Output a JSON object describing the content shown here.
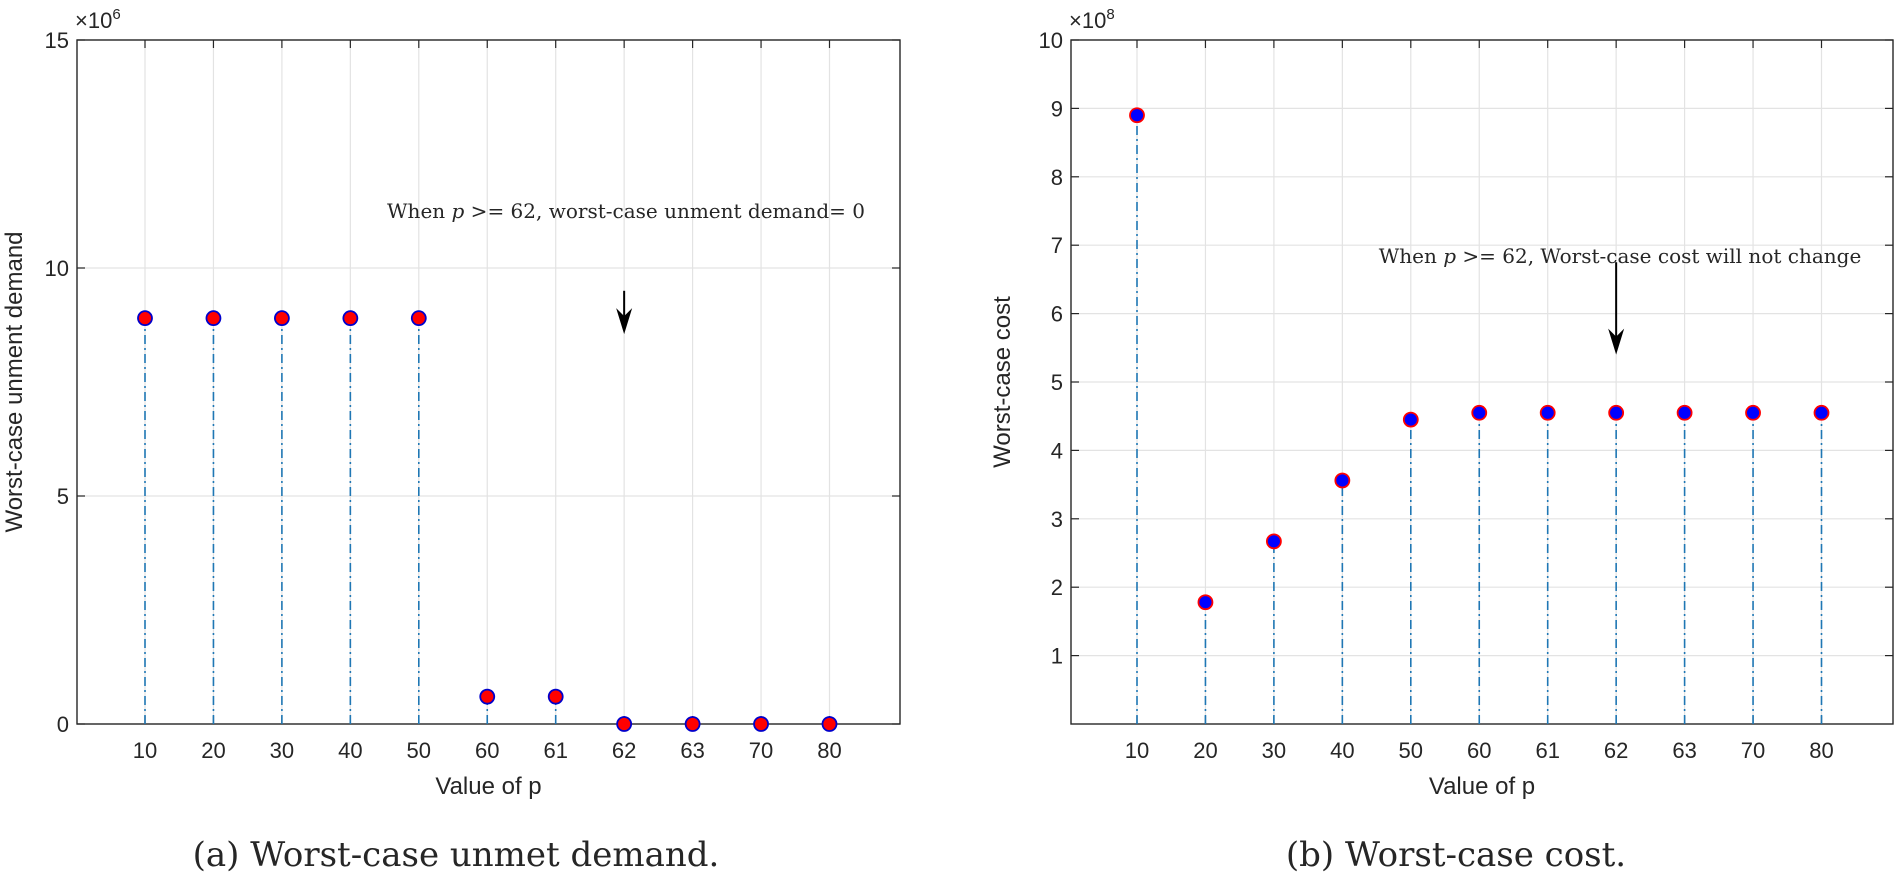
{
  "chart_data": [
    {
      "type": "stem",
      "panel": "a",
      "caption": "(a) Worst-case unmet demand.",
      "xlabel": "Value of p",
      "ylabel": "Worst-case unment demand",
      "categories": [
        "10",
        "20",
        "30",
        "40",
        "50",
        "60",
        "61",
        "62",
        "63",
        "70",
        "80"
      ],
      "values": [
        8.9,
        8.9,
        8.9,
        8.9,
        8.9,
        0.6,
        0.6,
        0,
        0,
        0,
        0
      ],
      "ylim": [
        0,
        15
      ],
      "yticks": [
        0,
        5,
        10,
        15
      ],
      "y_multiplier": "×10",
      "y_multiplier_exp": "6",
      "grid": true,
      "marker": {
        "face": "#ff0000",
        "edge": "#0000cc"
      },
      "stem_color": "#1f77b4",
      "annotation": {
        "pre": "When ",
        "var": "p",
        "post": " >= 62, worst-case unment demand= 0",
        "arrow_category": "62",
        "arrow_from": 9.5,
        "arrow_to": 8.55
      }
    },
    {
      "type": "stem",
      "panel": "b",
      "caption": "(b) Worst-case cost.",
      "xlabel": "Value of p",
      "ylabel": "Worst-case cost",
      "categories": [
        "10",
        "20",
        "30",
        "40",
        "50",
        "60",
        "61",
        "62",
        "63",
        "70",
        "80"
      ],
      "values": [
        8.9,
        1.78,
        2.67,
        3.56,
        4.45,
        4.55,
        4.55,
        4.55,
        4.55,
        4.55,
        4.55
      ],
      "ylim": [
        0,
        10
      ],
      "yticks": [
        1,
        2,
        3,
        4,
        5,
        6,
        7,
        8,
        9,
        10
      ],
      "y_multiplier": "×10",
      "y_multiplier_exp": "8",
      "grid": true,
      "marker": {
        "face": "#0000ff",
        "edge": "#ff0000"
      },
      "stem_color": "#1f77b4",
      "annotation": {
        "pre": "When ",
        "var": "p",
        "post": " >= 62, Worst-case cost will not change",
        "arrow_category": "62",
        "arrow_from": 6.75,
        "arrow_to": 5.4
      }
    }
  ]
}
